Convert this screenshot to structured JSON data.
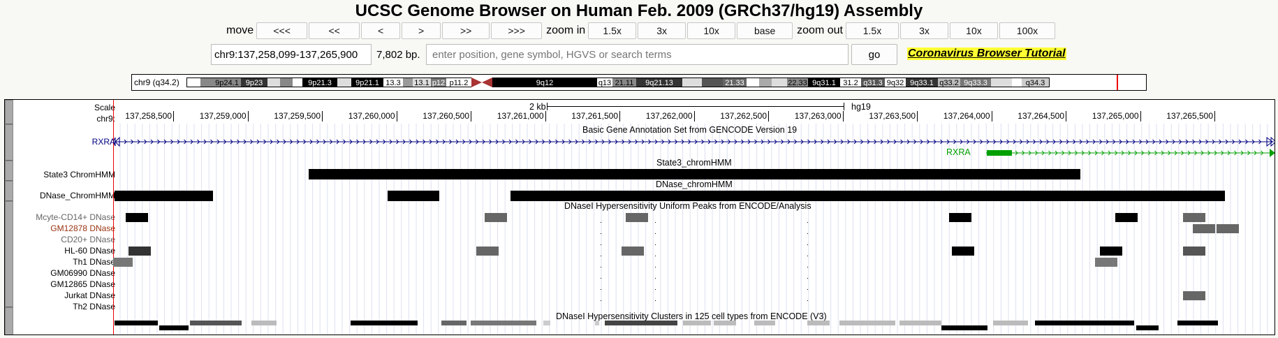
{
  "title": "UCSC Genome Browser on Human Feb. 2009 (GRCh37/hg19) Assembly",
  "nav": {
    "move_label": "move",
    "move_buttons": [
      "<<<",
      "<<",
      "<",
      ">",
      ">>",
      ">>>"
    ],
    "zoom_in_label": "zoom in",
    "zoom_in_buttons": [
      "1.5x",
      "3x",
      "10x",
      "base"
    ],
    "zoom_out_label": "zoom out",
    "zoom_out_buttons": [
      "1.5x",
      "3x",
      "10x",
      "100x"
    ]
  },
  "search": {
    "position": "chr9:137,258,099-137,265,900",
    "size": "7,802 bp.",
    "placeholder": "enter position, gene symbol, HGVS or search terms",
    "go_label": "go",
    "tutorial_link": "Coronavirus Browser Tutorial"
  },
  "ideogram": {
    "label": "chr9 (q34.2)",
    "bands": [
      "9p24.1",
      "9p23",
      "9p21.3",
      "9p21.1",
      "13.3",
      "13.1",
      "p12",
      "p11.2",
      "9q12",
      "q13",
      "21.11",
      "9q21.13",
      "21.33",
      "22.33",
      "9q31.1",
      "31.2",
      "q31.3",
      "9q32",
      "9q33.1",
      "q33.2",
      "9q33.3",
      "q34.3"
    ]
  },
  "scale": {
    "label": "Scale",
    "chrom_label": "chr9:",
    "bar_label": "2 kb",
    "assembly": "hg19",
    "ticks": [
      "137,258,500",
      "137,259,000",
      "137,259,500",
      "137,260,000",
      "137,260,500",
      "137,261,000",
      "137,261,500",
      "137,262,000",
      "137,262,500",
      "137,263,000",
      "137,263,500",
      "137,264,000",
      "137,264,500",
      "137,265,000",
      "137,265,500"
    ]
  },
  "tracks": {
    "gencode_title": "Basic Gene Annotation Set from GENCODE Version 19",
    "gene1": "RXRA",
    "gene2": "RXRA",
    "state3_label": "State3 ChromHMM",
    "state3_title": "State3_chromHMM",
    "dnase_label": "DNase_ChromHMM",
    "dnase_title": "DNase_chromHMM",
    "uniform_title": "DNaseI Hypersensitivity Uniform Peaks from ENCODE/Analysis",
    "uniform_labels": [
      "Mcyte-CD14+ DNase",
      "GM12878 DNase",
      "CD20+ DNase",
      "HL-60 DNase",
      "Th1 DNase",
      "GM06990 DNase",
      "GM12865 DNase",
      "Jurkat DNase",
      "Th2 DNase"
    ],
    "clusters_title": "DNaseI Hypersensitivity Clusters in 125 cell types from ENCODE (V3)"
  },
  "colors": {
    "gene_blue": "#000080",
    "gene_green": "#00a000",
    "label_gray": "#666666",
    "label_brown": "#993311",
    "tutorial_bg": "#ffff33",
    "centromere": "#aa3333"
  }
}
